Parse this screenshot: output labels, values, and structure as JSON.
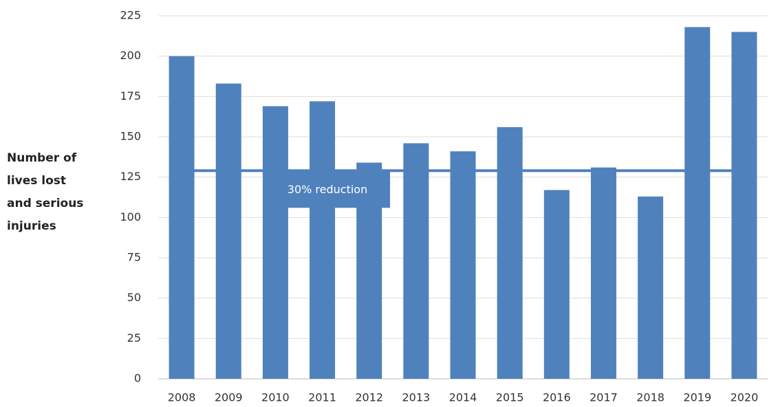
{
  "chart_data": {
    "type": "bar",
    "ylabel": [
      "Number of",
      "lives lost",
      "and serious",
      "injuries"
    ],
    "categories": [
      "2008",
      "2009",
      "2010",
      "2011",
      "2012",
      "2013",
      "2014",
      "2015",
      "2016",
      "2017",
      "2018",
      "2019",
      "2020"
    ],
    "values": [
      200,
      183,
      169,
      172,
      134,
      146,
      141,
      156,
      117,
      131,
      113,
      218,
      215
    ],
    "color": "#4f81bd",
    "ylim": [
      0,
      225
    ],
    "yticks": [
      0,
      25,
      50,
      75,
      100,
      125,
      150,
      175,
      200,
      225
    ],
    "grid": true,
    "target": {
      "value": 129,
      "label": "30% reduction"
    }
  }
}
